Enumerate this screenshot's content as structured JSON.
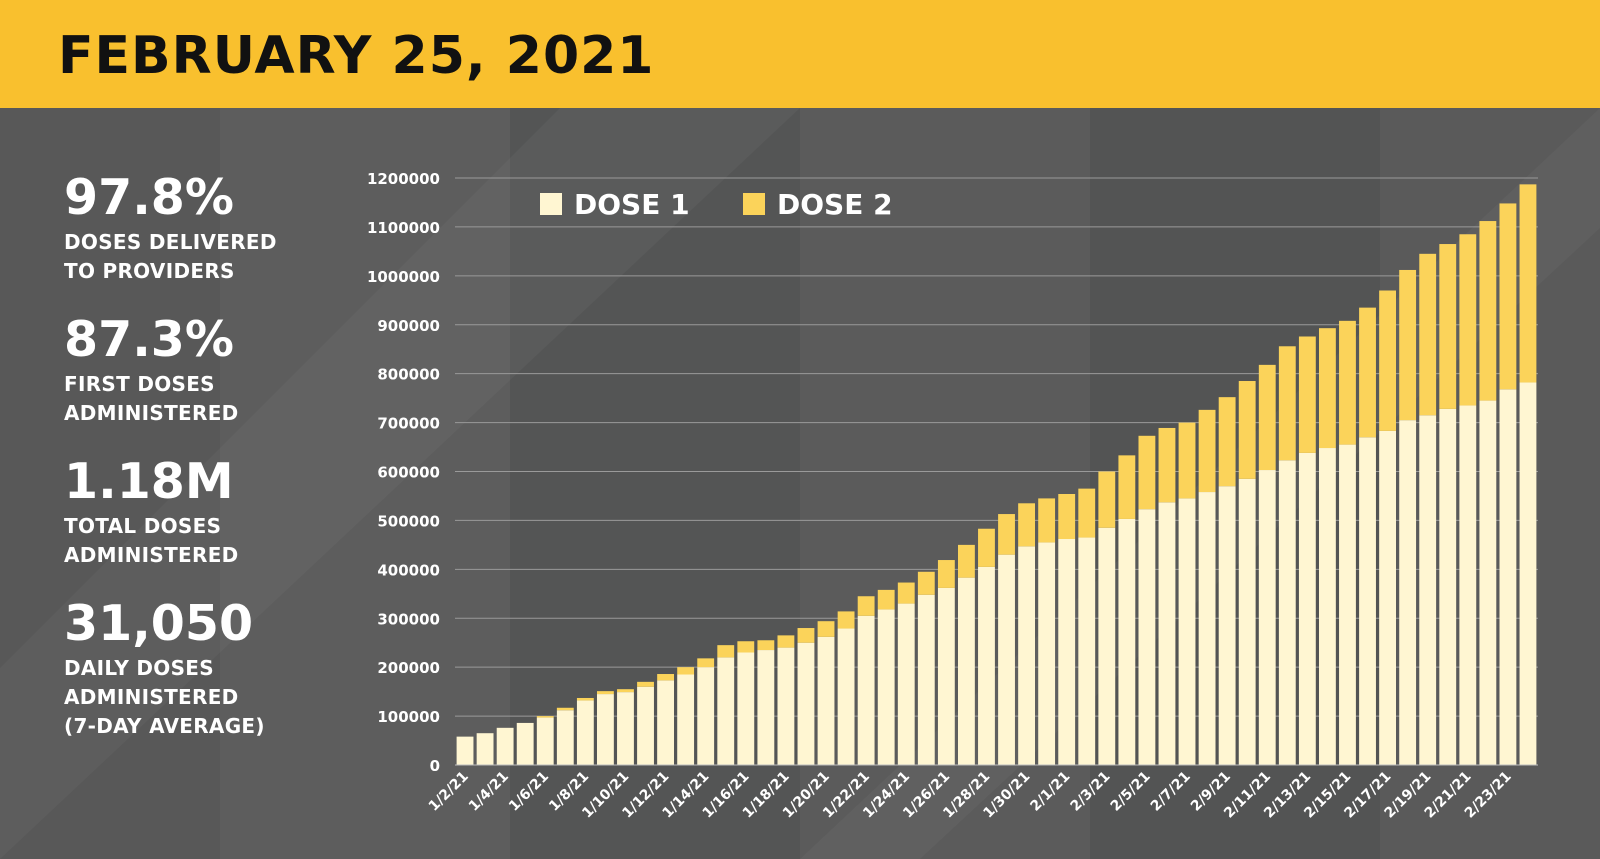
{
  "header": {
    "title": "FEBRUARY 25, 2021"
  },
  "stats": [
    {
      "value": "97.8%",
      "label_lines": [
        "DOSES DELIVERED",
        "TO PROVIDERS"
      ]
    },
    {
      "value": "87.3%",
      "label_lines": [
        "FIRST DOSES",
        "ADMINISTERED"
      ]
    },
    {
      "value": "1.18M",
      "label_lines": [
        "TOTAL DOSES",
        "ADMINISTERED"
      ]
    },
    {
      "value": "31,050",
      "label_lines": [
        "DAILY DOSES",
        "ADMINISTERED",
        "(7-DAY AVERAGE)"
      ]
    }
  ],
  "colors": {
    "header_bg": "#f9c02e",
    "panel_bg": "#585858",
    "dose1": "#fff6d2",
    "dose2": "#fbd35a",
    "text": "#ffffff"
  },
  "chart_data": {
    "type": "bar",
    "stacked": true,
    "legend": {
      "position": "top-left"
    },
    "grid": true,
    "ylim": [
      0,
      1200000
    ],
    "yticks": [
      0,
      100000,
      200000,
      300000,
      400000,
      500000,
      600000,
      700000,
      800000,
      900000,
      1000000,
      1100000,
      1200000
    ],
    "categories": [
      "1/2/21",
      "1/3/21",
      "1/4/21",
      "1/5/21",
      "1/6/21",
      "1/7/21",
      "1/8/21",
      "1/9/21",
      "1/10/21",
      "1/11/21",
      "1/12/21",
      "1/13/21",
      "1/14/21",
      "1/15/21",
      "1/16/21",
      "1/17/21",
      "1/18/21",
      "1/19/21",
      "1/20/21",
      "1/21/21",
      "1/22/21",
      "1/23/21",
      "1/24/21",
      "1/25/21",
      "1/26/21",
      "1/27/21",
      "1/28/21",
      "1/29/21",
      "1/30/21",
      "1/31/21",
      "2/1/21",
      "2/2/21",
      "2/3/21",
      "2/4/21",
      "2/5/21",
      "2/6/21",
      "2/7/21",
      "2/8/21",
      "2/9/21",
      "2/10/21",
      "2/11/21",
      "2/12/21",
      "2/13/21",
      "2/14/21",
      "2/15/21",
      "2/16/21",
      "2/17/21",
      "2/18/21",
      "2/19/21",
      "2/20/21",
      "2/21/21",
      "2/22/21",
      "2/23/21",
      "2/24/21"
    ],
    "xtick_labels": [
      "1/2/21",
      "1/4/21",
      "1/6/21",
      "1/8/21",
      "1/10/21",
      "1/12/21",
      "1/14/21",
      "1/16/21",
      "1/18/21",
      "1/20/21",
      "1/22/21",
      "1/24/21",
      "1/26/21",
      "1/28/21",
      "1/30/21",
      "2/1/21",
      "2/3/21",
      "2/5/21",
      "2/7/21",
      "2/9/21",
      "2/11/21",
      "2/13/21",
      "2/15/21",
      "2/17/21",
      "2/19/21",
      "2/21/21",
      "2/23/21"
    ],
    "series": [
      {
        "name": "DOSE 1",
        "color": "#fff6d2",
        "values": [
          58000,
          65000,
          76000,
          86000,
          97000,
          112000,
          132000,
          145000,
          149000,
          160000,
          173000,
          185000,
          200000,
          220000,
          230000,
          235000,
          240000,
          250000,
          262000,
          279000,
          305000,
          318000,
          330000,
          348000,
          362000,
          383000,
          405000,
          430000,
          447000,
          455000,
          462000,
          465000,
          485000,
          503000,
          523000,
          537000,
          545000,
          558000,
          570000,
          585000,
          603000,
          623000,
          638000,
          648000,
          655000,
          670000,
          683000,
          705000,
          715000,
          728000,
          735000,
          745000,
          768000,
          782000
        ]
      },
      {
        "name": "DOSE 2",
        "color": "#fbd35a",
        "values": [
          0,
          0,
          0,
          0,
          3000,
          5000,
          5000,
          6000,
          6000,
          10000,
          13000,
          15000,
          18000,
          25000,
          23000,
          20000,
          25000,
          30000,
          32000,
          35000,
          40000,
          40000,
          43000,
          47000,
          57000,
          67000,
          78000,
          83000,
          88000,
          90000,
          92000,
          100000,
          115000,
          130000,
          150000,
          152000,
          155000,
          168000,
          182000,
          200000,
          215000,
          233000,
          238000,
          245000,
          253000,
          265000,
          287000,
          307000,
          330000,
          337000,
          350000,
          367000,
          380000,
          405000
        ]
      }
    ]
  }
}
